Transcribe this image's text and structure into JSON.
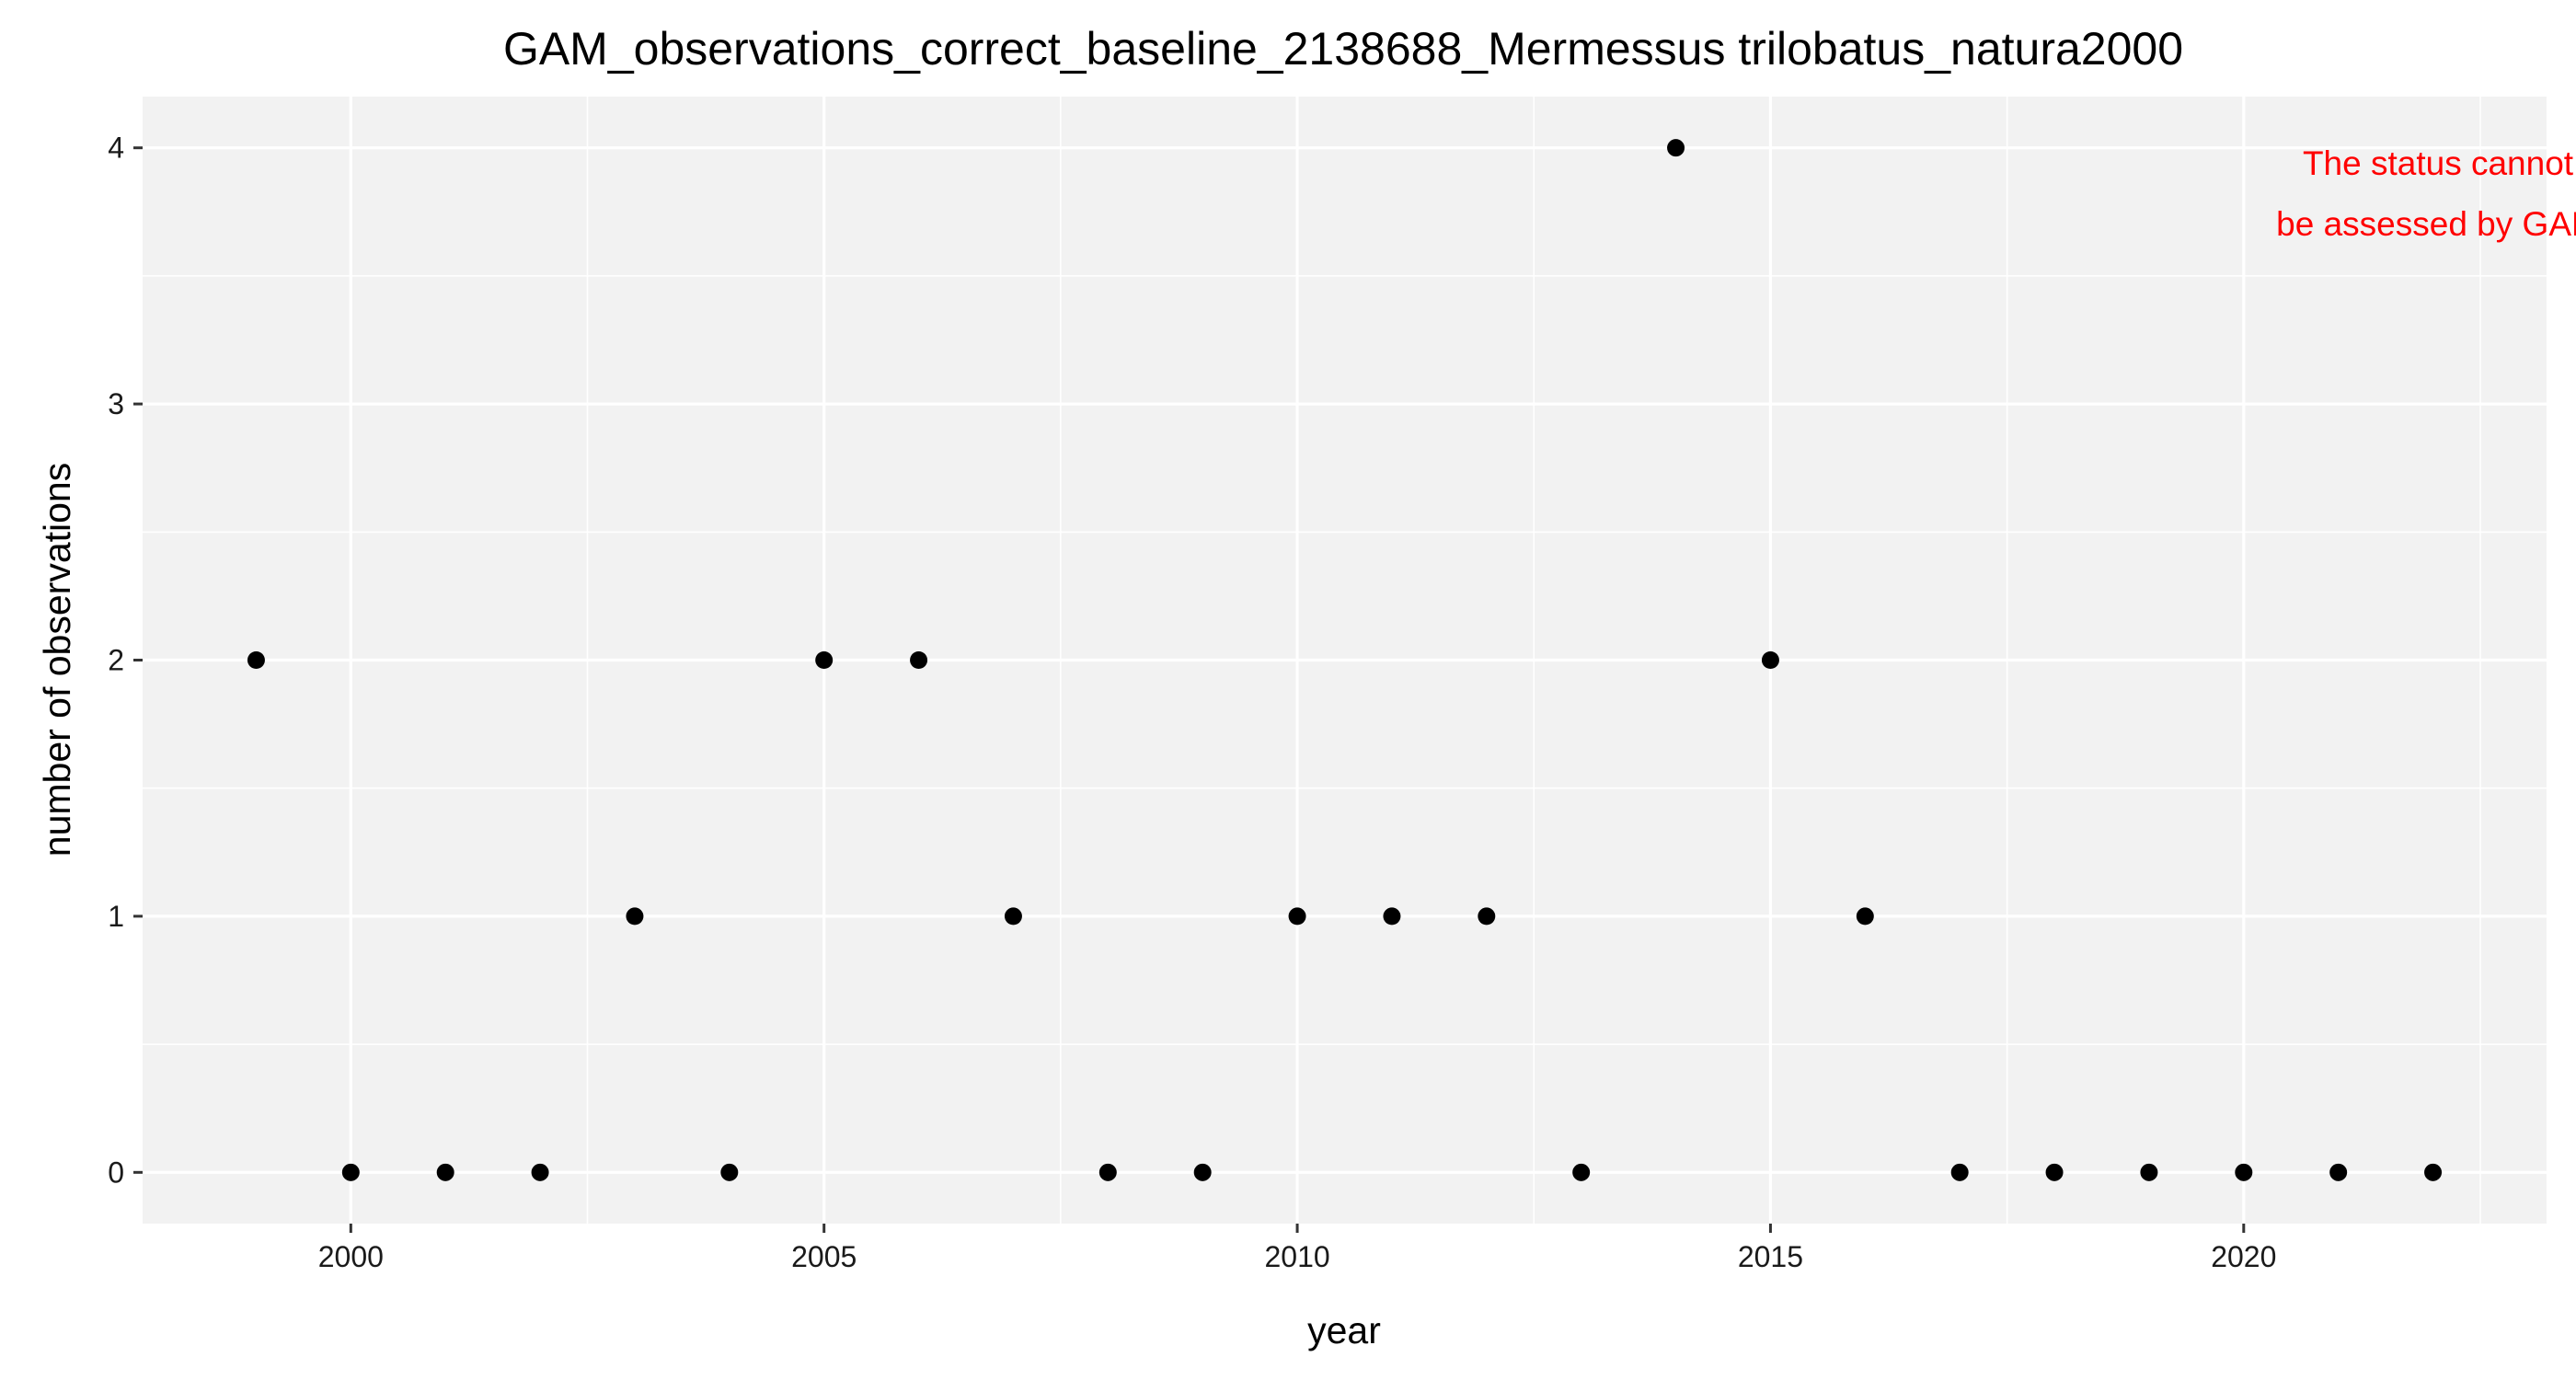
{
  "chart_data": {
    "type": "scatter",
    "title": "GAM_observations_correct_baseline_2138688_Mermessus trilobatus_natura2000",
    "xlabel": "year",
    "ylabel": "number of observations",
    "xlim": [
      1997.8,
      2023.2
    ],
    "ylim": [
      -0.2,
      4.2
    ],
    "x_ticks": [
      2000,
      2005,
      2010,
      2015,
      2020
    ],
    "y_ticks": [
      0,
      1,
      2,
      3,
      4
    ],
    "grid": true,
    "legend": "none",
    "colors": {
      "panel_background": "#f2f2f2",
      "grid": "#ffffff",
      "points": "#000000",
      "annotation": "#ff0000"
    },
    "series": [
      {
        "x": [
          1999,
          2000,
          2001,
          2002,
          2003,
          2004,
          2005,
          2006,
          2007,
          2008,
          2009,
          2010,
          2011,
          2012,
          2013,
          2014,
          2015,
          2016,
          2017,
          2018,
          2019,
          2020,
          2021,
          2022
        ],
        "y": [
          2,
          0,
          0,
          0,
          1,
          0,
          2,
          2,
          1,
          0,
          0,
          1,
          1,
          1,
          0,
          4,
          2,
          1,
          0,
          0,
          0,
          0,
          0,
          0
        ]
      }
    ],
    "annotations": [
      {
        "text": "The status cannot",
        "position": "top-right"
      },
      {
        "text": "be assessed by GAM",
        "position": "top-right"
      }
    ]
  }
}
